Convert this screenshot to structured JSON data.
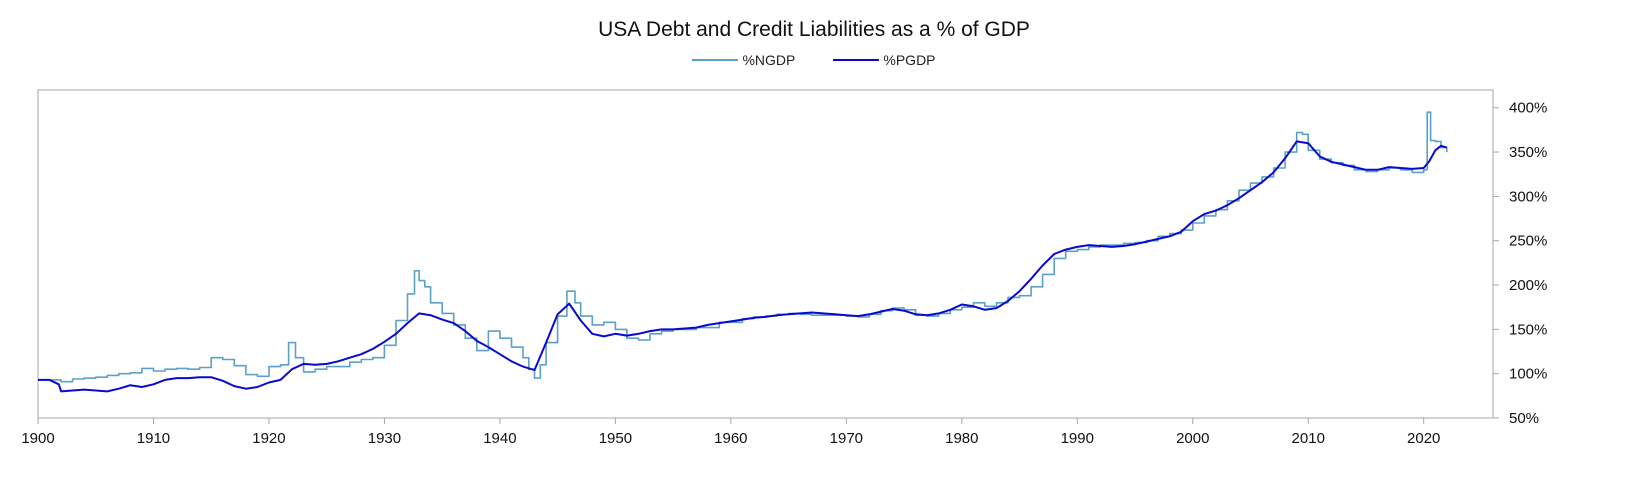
{
  "chart_data": {
    "type": "line",
    "title": "USA Debt and Credit Liabilities as a % of GDP",
    "xlim": [
      1900,
      2026
    ],
    "ylim": [
      50,
      420
    ],
    "x_ticks": [
      1900,
      1910,
      1920,
      1930,
      1940,
      1950,
      1960,
      1970,
      1980,
      1990,
      2000,
      2010,
      2020
    ],
    "x_tick_labels": [
      "1900",
      "1910",
      "1920",
      "1930",
      "1940",
      "1950",
      "1960",
      "1970",
      "1980",
      "1990",
      "2000",
      "2010",
      "2020"
    ],
    "y_ticks": [
      50,
      100,
      150,
      200,
      250,
      300,
      350,
      400
    ],
    "y_tick_labels": [
      "50%",
      "100%",
      "150%",
      "200%",
      "250%",
      "300%",
      "350%",
      "400%"
    ],
    "y_axis_side": "right",
    "legend_position": "top-center",
    "grid": false,
    "series": [
      {
        "name": "%NGDP",
        "color": "#5aa0c8",
        "step": true,
        "x": [
          1900,
          1901,
          1902,
          1903,
          1904,
          1905,
          1906,
          1907,
          1908,
          1909,
          1910,
          1911,
          1912,
          1913,
          1914,
          1915,
          1916,
          1917,
          1918,
          1919,
          1920,
          1921,
          1921.7,
          1922.3,
          1923,
          1924,
          1925,
          1926,
          1927,
          1928,
          1929,
          1930,
          1931,
          1932,
          1932.6,
          1933,
          1933.5,
          1934,
          1935,
          1936,
          1937,
          1938,
          1939,
          1940,
          1941,
          1942,
          1942.5,
          1943,
          1943.5,
          1944,
          1945,
          1945.8,
          1946.5,
          1947,
          1948,
          1949,
          1950,
          1951,
          1952,
          1953,
          1954,
          1955,
          1956,
          1957,
          1958,
          1959,
          1960,
          1961,
          1962,
          1963,
          1964,
          1965,
          1966,
          1967,
          1968,
          1969,
          1970,
          1971,
          1972,
          1973,
          1974,
          1975,
          1976,
          1977,
          1978,
          1979,
          1980,
          1981,
          1982,
          1983,
          1984,
          1985,
          1986,
          1987,
          1988,
          1989,
          1990,
          1991,
          1992,
          1993,
          1994,
          1995,
          1996,
          1997,
          1998,
          1999,
          2000,
          2001,
          2002,
          2003,
          2004,
          2005,
          2006,
          2007,
          2008,
          2009,
          2009.5,
          2010,
          2011,
          2012,
          2013,
          2014,
          2015,
          2016,
          2017,
          2018,
          2019,
          2020,
          2020.3,
          2020.6,
          2021,
          2021.5,
          2022
        ],
        "y": [
          93,
          93,
          91,
          94,
          95,
          96,
          98,
          100,
          101,
          106,
          103,
          105,
          106,
          105,
          107,
          118,
          116,
          109,
          99,
          97,
          108,
          110,
          135,
          118,
          102,
          105,
          108,
          108,
          113,
          116,
          118,
          132,
          160,
          190,
          216,
          205,
          198,
          180,
          168,
          155,
          140,
          126,
          148,
          140,
          130,
          118,
          105,
          95,
          110,
          135,
          165,
          193,
          180,
          165,
          155,
          158,
          150,
          140,
          138,
          145,
          148,
          150,
          150,
          152,
          152,
          158,
          158,
          162,
          164,
          165,
          167,
          168,
          167,
          166,
          166,
          166,
          165,
          164,
          167,
          171,
          174,
          172,
          166,
          165,
          168,
          172,
          175,
          180,
          176,
          180,
          186,
          188,
          198,
          212,
          230,
          238,
          240,
          243,
          245,
          245,
          247,
          248,
          250,
          255,
          258,
          262,
          270,
          278,
          285,
          295,
          307,
          315,
          322,
          332,
          350,
          372,
          370,
          352,
          342,
          338,
          335,
          330,
          328,
          330,
          332,
          330,
          327,
          330,
          395,
          363,
          362,
          355,
          350
        ]
      },
      {
        "name": "%PGDP",
        "color": "#0a0acc",
        "step": false,
        "x": [
          1900,
          1901,
          1901.8,
          1902,
          1903,
          1904,
          1905,
          1906,
          1907,
          1908,
          1909,
          1910,
          1911,
          1912,
          1913,
          1914,
          1915,
          1916,
          1917,
          1918,
          1919,
          1920,
          1921,
          1922,
          1923,
          1924,
          1925,
          1926,
          1927,
          1928,
          1929,
          1930,
          1931,
          1932,
          1933,
          1934,
          1935,
          1936,
          1937,
          1938,
          1939,
          1940,
          1941,
          1942,
          1943,
          1944,
          1945,
          1946,
          1947,
          1948,
          1949,
          1950,
          1951,
          1952,
          1953,
          1954,
          1955,
          1956,
          1957,
          1958,
          1959,
          1960,
          1961,
          1962,
          1963,
          1964,
          1965,
          1966,
          1967,
          1968,
          1969,
          1970,
          1971,
          1972,
          1973,
          1974,
          1975,
          1976,
          1977,
          1978,
          1979,
          1980,
          1981,
          1982,
          1983,
          1984,
          1985,
          1986,
          1987,
          1988,
          1989,
          1990,
          1991,
          1992,
          1993,
          1994,
          1995,
          1996,
          1997,
          1998,
          1999,
          2000,
          2001,
          2002,
          2003,
          2004,
          2005,
          2006,
          2007,
          2008,
          2009,
          2010,
          2011,
          2012,
          2013,
          2014,
          2015,
          2016,
          2017,
          2018,
          2019,
          2020,
          2020.5,
          2021,
          2021.5,
          2022
        ],
        "y": [
          93,
          93,
          88,
          80,
          81,
          82,
          81,
          80,
          83,
          87,
          85,
          88,
          93,
          95,
          95,
          96,
          96,
          92,
          86,
          83,
          85,
          90,
          93,
          105,
          111,
          110,
          111,
          114,
          118,
          122,
          128,
          136,
          145,
          157,
          168,
          166,
          161,
          157,
          148,
          137,
          130,
          122,
          114,
          108,
          104,
          135,
          167,
          179,
          160,
          145,
          142,
          145,
          143,
          145,
          148,
          150,
          150,
          151,
          152,
          155,
          157,
          159,
          161,
          163,
          164,
          166,
          167,
          168,
          169,
          168,
          167,
          166,
          165,
          167,
          170,
          173,
          171,
          167,
          166,
          168,
          172,
          178,
          176,
          172,
          174,
          182,
          193,
          207,
          222,
          235,
          240,
          243,
          245,
          244,
          243,
          244,
          246,
          249,
          252,
          255,
          260,
          272,
          280,
          284,
          290,
          298,
          307,
          316,
          327,
          343,
          362,
          360,
          345,
          339,
          336,
          333,
          330,
          330,
          333,
          332,
          331,
          332,
          340,
          352,
          357,
          355
        ]
      }
    ]
  }
}
